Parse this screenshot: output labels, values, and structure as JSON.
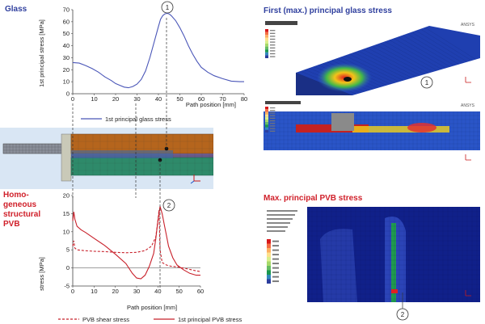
{
  "headings": {
    "glass": "Glass",
    "pvb": [
      "Homo-",
      "geneous",
      "structural",
      "PVB"
    ],
    "glass_stress_panel": "First (max.) principal glass stress",
    "pvb_stress_panel": "Max. principal PVB stress"
  },
  "markers": {
    "one": "1",
    "two": "2"
  },
  "fem": {
    "brand": "ANSYS"
  },
  "chart_data": [
    {
      "type": "line",
      "xlabel": "Path position [mm]",
      "ylabel": "1st principal stress [MPa]",
      "xlim": [
        0,
        80
      ],
      "ylim": [
        0,
        70
      ],
      "xticks": [
        "0",
        "10",
        "20",
        "30",
        "40",
        "50",
        "60",
        "70",
        "80"
      ],
      "yticks": [
        "0",
        "10",
        "20",
        "30",
        "40",
        "50",
        "60",
        "70"
      ],
      "grid": false,
      "legend_position": "bottom-center",
      "series": [
        {
          "name": "1st principal glass stress",
          "color": "#4a56b8",
          "x": [
            0,
            3,
            6,
            9,
            12,
            15,
            18,
            20,
            22,
            24,
            26,
            28,
            30,
            32,
            34,
            36,
            38,
            40,
            41,
            42,
            43,
            44,
            45,
            46,
            48,
            50,
            52,
            54,
            56,
            58,
            60,
            63,
            66,
            70,
            74,
            78,
            80
          ],
          "y": [
            26,
            25.5,
            23.5,
            21,
            18,
            14,
            11,
            8.5,
            7,
            5.5,
            5,
            6,
            8,
            12,
            19,
            30,
            43,
            56,
            62,
            65,
            66.5,
            67,
            66.5,
            65,
            61,
            55,
            48,
            40,
            33,
            27,
            22,
            18,
            15,
            12.5,
            10.5,
            10,
            10
          ]
        }
      ]
    },
    {
      "type": "line",
      "xlabel": "Path position [mm]",
      "ylabel": "stress [MPa]",
      "xlim": [
        0,
        60
      ],
      "ylim": [
        -5,
        20
      ],
      "xticks": [
        "0",
        "10",
        "20",
        "30",
        "40",
        "50",
        "60"
      ],
      "yticks": [
        "-5",
        "0",
        "5",
        "10",
        "15",
        "20"
      ],
      "grid": false,
      "legend_position": "bottom",
      "series": [
        {
          "name": "PVB shear stress",
          "color": "#c8202a",
          "dash": true,
          "x": [
            0,
            0.5,
            1,
            2,
            5,
            10,
            15,
            20,
            25,
            30,
            34,
            37,
            39,
            40,
            40.5,
            41,
            42,
            44,
            46,
            50,
            55,
            58,
            60
          ],
          "y": [
            6,
            7.5,
            5.5,
            5,
            4.8,
            4.6,
            4.5,
            4.3,
            4.2,
            4.3,
            4.8,
            6,
            8.5,
            13,
            16,
            5,
            1.5,
            0.8,
            0.5,
            0.2,
            -0.4,
            -0.8,
            -1
          ],
          "comment_marker": ""
        },
        {
          "name": "1st principal PVB stress",
          "color": "#c8202a",
          "dash": false,
          "x": [
            0,
            0.5,
            1,
            2,
            4,
            6,
            10,
            15,
            20,
            25,
            28,
            30,
            32,
            34,
            36,
            38,
            39,
            40,
            41,
            42,
            43,
            44,
            45,
            47,
            49,
            52,
            55,
            58,
            60
          ],
          "y": [
            13,
            15.5,
            13.5,
            11.5,
            10.5,
            9.8,
            8.2,
            6.2,
            3.8,
            1.2,
            -1.5,
            -2.8,
            -3,
            -2,
            0.5,
            4,
            8,
            13,
            17,
            15,
            12,
            9,
            6,
            2.8,
            0.8,
            -0.5,
            -1.5,
            -2,
            -2
          ]
        }
      ]
    }
  ]
}
